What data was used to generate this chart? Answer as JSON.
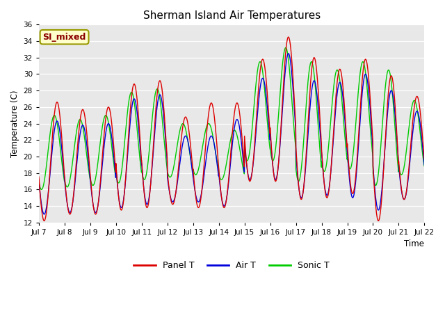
{
  "title": "Sherman Island Air Temperatures",
  "xlabel": "Time",
  "ylabel": "Temperature (C)",
  "ylim": [
    12,
    36
  ],
  "yticks": [
    12,
    14,
    16,
    18,
    20,
    22,
    24,
    26,
    28,
    30,
    32,
    34,
    36
  ],
  "annotation": "SI_mixed",
  "background_color": "#e8e8e8",
  "line_colors": {
    "panel": "#dd0000",
    "air": "#0000dd",
    "sonic": "#00cc00"
  },
  "x_tick_labels": [
    "Jul 7",
    "Jul 8",
    "Jul 9",
    "Jul 10",
    "Jul 11",
    "Jul 12",
    "Jul 13",
    "Jul 14",
    "Jul 15",
    "Jul 16",
    "Jul 17",
    "Jul 18",
    "Jul 19",
    "Jul 20",
    "Jul 21",
    "Jul 22"
  ],
  "legend_labels": [
    "Panel T",
    "Air T",
    "Sonic T"
  ],
  "panel_mins": [
    12.2,
    13.0,
    13.0,
    13.5,
    13.8,
    14.2,
    13.8,
    13.8,
    17.0,
    17.0,
    14.8,
    15.0,
    15.5,
    12.2,
    14.8
  ],
  "panel_maxs": [
    26.6,
    25.7,
    26.0,
    28.8,
    29.2,
    24.8,
    26.5,
    26.5,
    31.8,
    34.5,
    32.0,
    30.6,
    31.8,
    29.8,
    27.3
  ],
  "air_mins": [
    13.0,
    13.2,
    13.2,
    13.8,
    14.2,
    14.5,
    14.5,
    14.0,
    17.2,
    17.2,
    15.0,
    15.3,
    15.0,
    13.5,
    14.8
  ],
  "air_maxs": [
    24.3,
    23.8,
    24.0,
    27.0,
    27.5,
    22.5,
    22.5,
    24.5,
    29.5,
    32.5,
    29.2,
    29.0,
    30.0,
    28.0,
    25.5
  ],
  "sonic_mins": [
    16.0,
    16.3,
    16.5,
    16.8,
    17.2,
    17.5,
    17.8,
    17.2,
    19.5,
    19.5,
    17.0,
    18.2,
    18.5,
    16.5,
    17.8
  ],
  "sonic_maxs": [
    25.0,
    24.5,
    25.0,
    27.8,
    28.2,
    24.0,
    24.0,
    23.2,
    31.5,
    33.2,
    31.5,
    30.5,
    31.5,
    30.5,
    26.8
  ],
  "sonic_phase_hours": -2.5,
  "peak_hour": 15,
  "trough_hour": 5,
  "figsize": [
    6.4,
    4.8
  ],
  "dpi": 100
}
